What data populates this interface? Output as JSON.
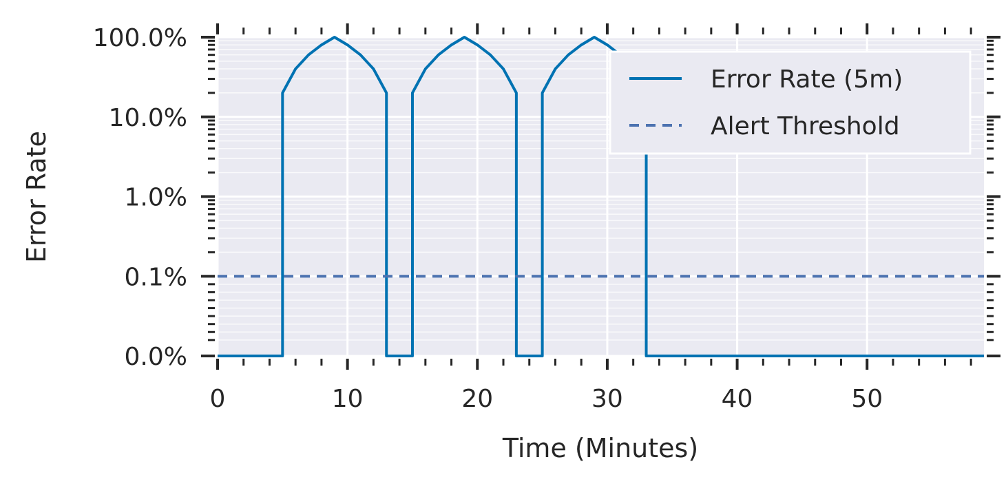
{
  "chart_data": {
    "type": "line",
    "title": "",
    "xlabel": "Time (Minutes)",
    "ylabel": "Error Rate",
    "xlim": [
      0,
      59
    ],
    "ylim": [
      0,
      100
    ],
    "y_scale": "symlog",
    "y_symlog_linthresh": 0.1,
    "x_ticks": [
      0,
      10,
      20,
      30,
      40,
      50
    ],
    "x_tick_labels": [
      "0",
      "10",
      "20",
      "30",
      "40",
      "50"
    ],
    "y_ticks": [
      0,
      0.1,
      1,
      10,
      100
    ],
    "y_tick_labels": [
      "0.0%",
      "0.1%",
      "1.0%",
      "10.0%",
      "100.0%"
    ],
    "grid": true,
    "background": "#eaeaf2",
    "legend_position": "top-right",
    "series": [
      {
        "name": "Error Rate (5m)",
        "style": "solid",
        "color": "#0072b2",
        "x": [
          0,
          1,
          2,
          3,
          4,
          5,
          5,
          6,
          7,
          8,
          9,
          10,
          11,
          12,
          13,
          13,
          14,
          15,
          15,
          16,
          17,
          18,
          19,
          20,
          21,
          22,
          23,
          23,
          24,
          25,
          25,
          26,
          27,
          28,
          29,
          30,
          31,
          32,
          33,
          33,
          34,
          35,
          36,
          37,
          38,
          39,
          40,
          41,
          42,
          43,
          44,
          45,
          46,
          47,
          48,
          49,
          50,
          51,
          52,
          53,
          54,
          55,
          56,
          57,
          58,
          59
        ],
        "y": [
          0,
          0,
          0,
          0,
          0,
          0,
          20,
          40,
          60,
          80,
          100,
          80,
          60,
          40,
          20,
          0,
          0,
          0,
          20,
          40,
          60,
          80,
          100,
          80,
          60,
          40,
          20,
          0,
          0,
          0,
          20,
          40,
          60,
          80,
          100,
          80,
          60,
          40,
          20,
          0,
          0,
          0,
          0,
          0,
          0,
          0,
          0,
          0,
          0,
          0,
          0,
          0,
          0,
          0,
          0,
          0,
          0,
          0,
          0,
          0,
          0,
          0,
          0,
          0,
          0,
          0
        ]
      },
      {
        "name": "Alert Threshold",
        "style": "dashed",
        "color": "#4c72b0",
        "x": [
          0,
          59
        ],
        "y": [
          0.1,
          0.1
        ]
      }
    ]
  }
}
